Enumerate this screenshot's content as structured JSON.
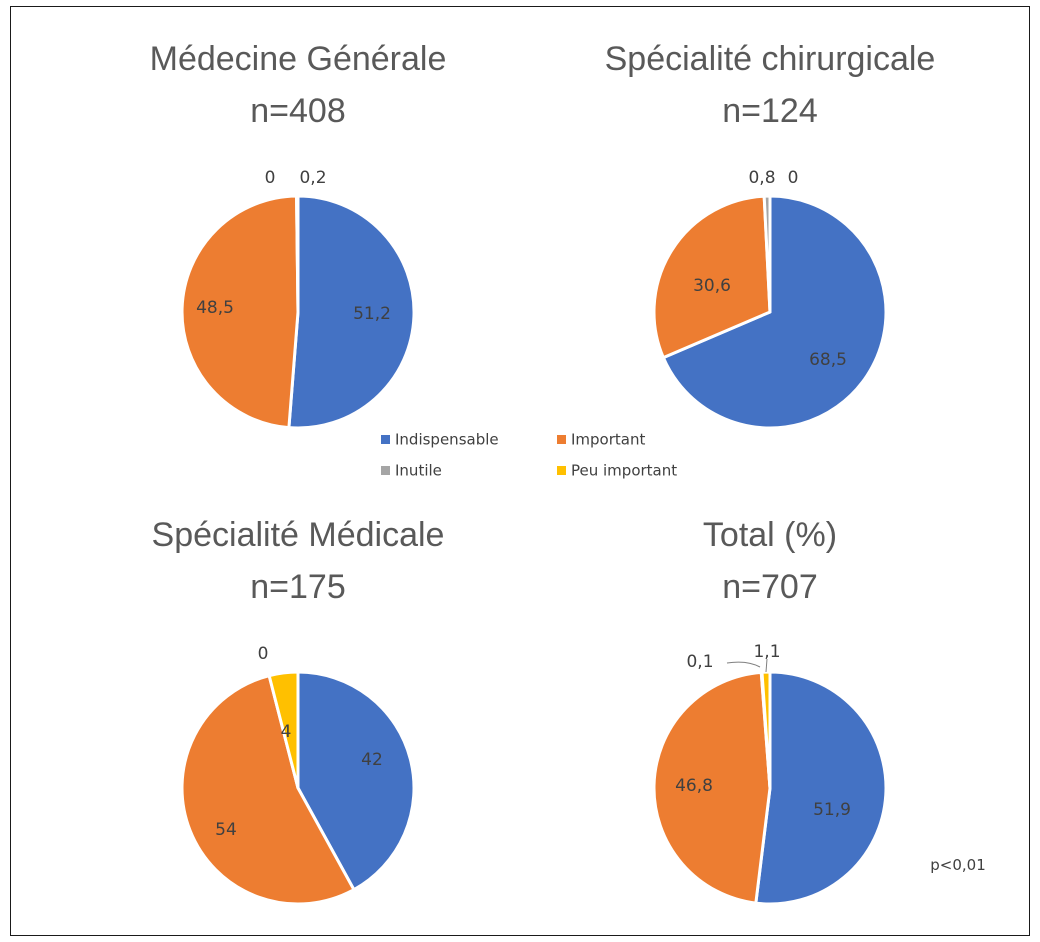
{
  "chart_data": [
    {
      "type": "pie",
      "title": "Médecine Générale",
      "subtitle": "n=408",
      "slices": [
        {
          "category": "Indispensable",
          "value": 51.2,
          "label": "51,2"
        },
        {
          "category": "Important",
          "value": 48.5,
          "label": "48,5"
        },
        {
          "category": "Inutile",
          "value": 0,
          "label": "0"
        },
        {
          "category": "Peu important",
          "value": 0.2,
          "label": "0,2"
        }
      ]
    },
    {
      "type": "pie",
      "title": "Spécialité chirurgicale",
      "subtitle": "n=124",
      "slices": [
        {
          "category": "Indispensable",
          "value": 68.5,
          "label": "68,5"
        },
        {
          "category": "Important",
          "value": 30.6,
          "label": "30,6"
        },
        {
          "category": "Inutile",
          "value": 0.8,
          "label": "0,8"
        },
        {
          "category": "Peu important",
          "value": 0,
          "label": "0"
        }
      ]
    },
    {
      "type": "pie",
      "title": "Spécialité Médicale",
      "subtitle": "n=175",
      "slices": [
        {
          "category": "Indispensable",
          "value": 42,
          "label": "42"
        },
        {
          "category": "Important",
          "value": 54,
          "label": "54"
        },
        {
          "category": "Inutile",
          "value": 0,
          "label": "0"
        },
        {
          "category": "Peu important",
          "value": 4,
          "label": "4"
        }
      ]
    },
    {
      "type": "pie",
      "title": "Total (%)",
      "subtitle": "n=707",
      "slices": [
        {
          "category": "Indispensable",
          "value": 51.9,
          "label": "51,9"
        },
        {
          "category": "Important",
          "value": 46.8,
          "label": "46,8"
        },
        {
          "category": "Inutile",
          "value": 0.1,
          "label": "0,1"
        },
        {
          "category": "Peu important",
          "value": 1.1,
          "label": "1,1"
        }
      ]
    }
  ],
  "legend": [
    {
      "label": "Indispensable",
      "color": "#4472C4"
    },
    {
      "label": "Important",
      "color": "#ED7D31"
    },
    {
      "label": "Inutile",
      "color": "#A5A5A5"
    },
    {
      "label": "Peu important",
      "color": "#FFC000"
    }
  ],
  "legend_placement": "center",
  "annotation": "p<0,01"
}
